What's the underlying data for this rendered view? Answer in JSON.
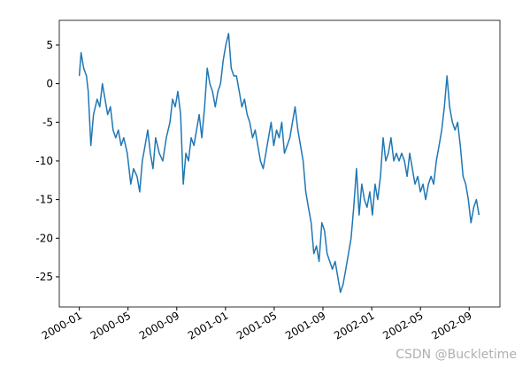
{
  "chart_data": {
    "type": "line",
    "x": [
      2000.0,
      2000.012,
      2000.03,
      2000.049,
      2000.061,
      2000.079,
      2000.097,
      2000.122,
      2000.14,
      2000.158,
      2000.176,
      2000.194,
      2000.213,
      2000.231,
      2000.249,
      2000.267,
      2000.286,
      2000.304,
      2000.328,
      2000.352,
      2000.371,
      2000.395,
      2000.413,
      2000.431,
      2000.45,
      2000.468,
      2000.486,
      2000.504,
      2000.522,
      2000.547,
      2000.571,
      2000.595,
      2000.62,
      2000.638,
      2000.656,
      2000.674,
      2000.693,
      2000.711,
      2000.729,
      2000.747,
      2000.765,
      2000.784,
      2000.802,
      2000.82,
      2000.838,
      2000.857,
      2000.875,
      2000.893,
      2000.911,
      2000.93,
      2000.948,
      2000.966,
      2000.984,
      2001.002,
      2001.021,
      2001.039,
      2001.057,
      2001.075,
      2001.094,
      2001.112,
      2001.13,
      2001.148,
      2001.166,
      2001.185,
      2001.203,
      2001.221,
      2001.239,
      2001.258,
      2001.276,
      2001.294,
      2001.312,
      2001.33,
      2001.349,
      2001.367,
      2001.385,
      2001.403,
      2001.422,
      2001.44,
      2001.458,
      2001.476,
      2001.495,
      2001.513,
      2001.531,
      2001.549,
      2001.567,
      2001.586,
      2001.604,
      2001.622,
      2001.64,
      2001.659,
      2001.677,
      2001.695,
      2001.713,
      2001.731,
      2001.75,
      2001.768,
      2001.786,
      2001.804,
      2001.823,
      2001.841,
      2001.859,
      2001.877,
      2001.896,
      2001.914,
      2001.932,
      2001.95,
      2001.968,
      2001.987,
      2002.005,
      2002.023,
      2002.041,
      2002.06,
      2002.078,
      2002.096,
      2002.114,
      2002.132,
      2002.151,
      2002.169,
      2002.187,
      2002.205,
      2002.224,
      2002.242,
      2002.26,
      2002.278,
      2002.296,
      2002.315,
      2002.333,
      2002.351,
      2002.369,
      2002.388,
      2002.406,
      2002.424,
      2002.442,
      2002.461,
      2002.479,
      2002.497,
      2002.515,
      2002.533,
      2002.552,
      2002.57,
      2002.588,
      2002.606,
      2002.625,
      2002.643,
      2002.661,
      2002.679,
      2002.698,
      2002.716,
      2002.734
    ],
    "series": [
      {
        "color": "#1f77b4",
        "values": [
          1,
          4,
          2,
          1,
          -1,
          -8,
          -4,
          -2,
          -3,
          0,
          -2,
          -4,
          -3,
          -6,
          -7,
          -6,
          -8,
          -7,
          -9,
          -13,
          -11,
          -12,
          -14,
          -10,
          -8,
          -6,
          -9,
          -11,
          -7,
          -9,
          -10,
          -7,
          -5,
          -2,
          -3,
          -1,
          -4,
          -13,
          -9,
          -10,
          -7,
          -8,
          -6,
          -4,
          -7,
          -3,
          2,
          0,
          -1,
          -3,
          -1,
          0,
          3,
          5,
          6.5,
          2,
          1,
          1,
          -1,
          -3,
          -2,
          -4,
          -5,
          -7,
          -6,
          -8,
          -10,
          -11,
          -9,
          -7,
          -5,
          -8,
          -6,
          -7,
          -5,
          -9,
          -8,
          -7,
          -5,
          -3,
          -6,
          -8,
          -10,
          -14,
          -16,
          -18,
          -22,
          -21,
          -23,
          -18,
          -19,
          -22,
          -23,
          -24,
          -23,
          -25,
          -27,
          -26,
          -24,
          -22,
          -20,
          -16,
          -11,
          -17,
          -13,
          -15,
          -16,
          -14,
          -17,
          -13,
          -15,
          -12,
          -7,
          -10,
          -9,
          -7,
          -10,
          -9,
          -10,
          -9,
          -10,
          -12,
          -9,
          -11,
          -13,
          -12,
          -14,
          -13,
          -15,
          -13,
          -12,
          -13,
          -10,
          -8,
          -6,
          -3,
          1,
          -3,
          -5,
          -6,
          -5,
          -8,
          -12,
          -13,
          -15,
          -18,
          -16,
          -15,
          -17
        ]
      }
    ],
    "xlim": [
      1999.863,
      2002.877
    ],
    "xticks": [
      {
        "value": 2000,
        "label": "2000-01"
      },
      {
        "value": 2000.3333,
        "label": "2000-05"
      },
      {
        "value": 2000.6667,
        "label": "2000-09"
      },
      {
        "value": 2001,
        "label": "2001-01"
      },
      {
        "value": 2001.3333,
        "label": "2001-05"
      },
      {
        "value": 2001.6667,
        "label": "2001-09"
      },
      {
        "value": 2002,
        "label": "2002-01"
      },
      {
        "value": 2002.3333,
        "label": "2002-05"
      },
      {
        "value": 2002.6667,
        "label": "2002-09"
      }
    ],
    "ylim": [
      -28.9,
      8.2
    ],
    "yticks": [
      5,
      0,
      -5,
      -10,
      -15,
      -20,
      -25
    ],
    "watermark": "CSDN @Buckletime"
  }
}
